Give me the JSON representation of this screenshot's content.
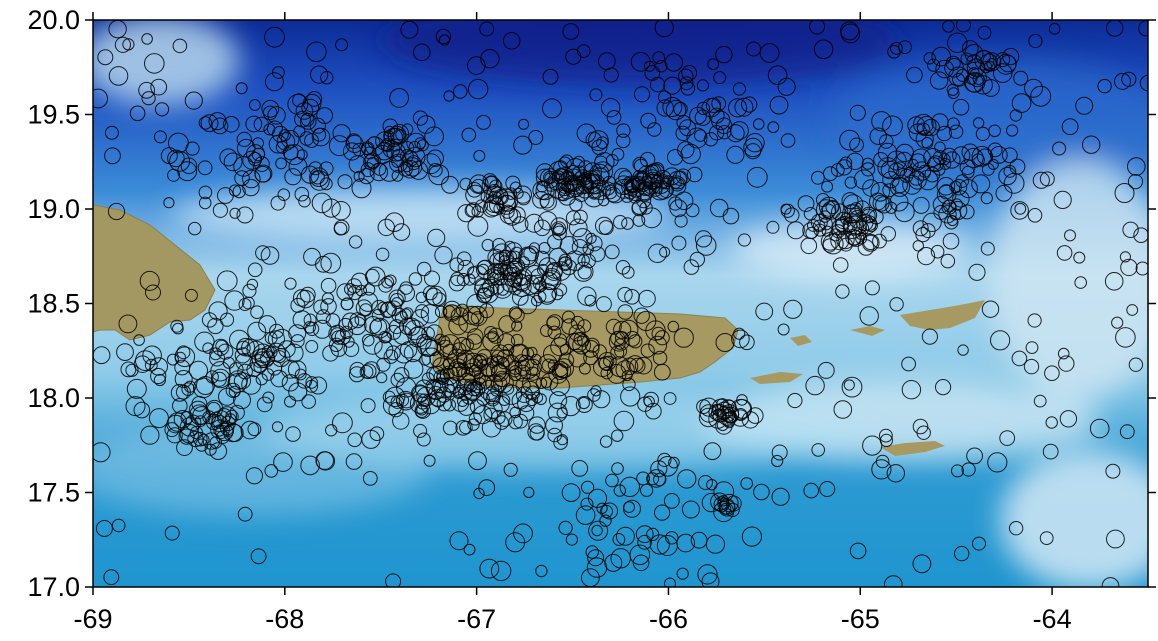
{
  "chart_data": {
    "type": "scatter",
    "title": "",
    "xlabel": "",
    "ylabel": "",
    "xlim": [
      -69.0,
      -63.5
    ],
    "ylim": [
      17.0,
      20.0
    ],
    "x_ticks": [
      "-69",
      "-68",
      "-67",
      "-66",
      "-65",
      "-64"
    ],
    "x_tick_values": [
      -69,
      -68,
      -67,
      -66,
      -65,
      -64
    ],
    "y_ticks": [
      "20.0",
      "19.5",
      "19.0",
      "18.5",
      "18.0",
      "17.5",
      "17.0"
    ],
    "y_tick_values": [
      20.0,
      19.5,
      19.0,
      18.5,
      18.0,
      17.5,
      17.0
    ],
    "marker": "open-circle",
    "marker_color": "#000000",
    "background": "shaded bathymetry (blue ocean) with olive land masses",
    "colors": {
      "deep_ocean": "#0d2f9c",
      "mid_ocean": "#2f7ed8",
      "shallow_ocean": "#9fd4ee",
      "land": "#a59a62"
    },
    "clusters": [
      {
        "lon": -68.2,
        "lat": 18.2,
        "n": 120,
        "spread": 0.35
      },
      {
        "lon": -68.4,
        "lat": 17.85,
        "n": 40,
        "spread": 0.12
      },
      {
        "lon": -67.05,
        "lat": 18.1,
        "n": 190,
        "spread": 0.28
      },
      {
        "lon": -66.8,
        "lat": 18.65,
        "n": 80,
        "spread": 0.18
      },
      {
        "lon": -66.5,
        "lat": 19.15,
        "n": 55,
        "spread": 0.09
      },
      {
        "lon": -66.1,
        "lat": 19.15,
        "n": 50,
        "spread": 0.09
      },
      {
        "lon": -66.9,
        "lat": 19.05,
        "n": 40,
        "spread": 0.12
      },
      {
        "lon": -65.1,
        "lat": 18.9,
        "n": 60,
        "spread": 0.14
      },
      {
        "lon": -64.6,
        "lat": 19.2,
        "n": 110,
        "spread": 0.3
      },
      {
        "lon": -68.0,
        "lat": 19.3,
        "n": 80,
        "spread": 0.3
      },
      {
        "lon": -67.4,
        "lat": 19.3,
        "n": 50,
        "spread": 0.15
      },
      {
        "lon": -65.7,
        "lat": 17.92,
        "n": 30,
        "spread": 0.07
      },
      {
        "lon": -65.7,
        "lat": 17.43,
        "n": 12,
        "spread": 0.03
      },
      {
        "lon": -66.4,
        "lat": 18.25,
        "n": 70,
        "spread": 0.25
      },
      {
        "lon": -65.9,
        "lat": 19.5,
        "n": 60,
        "spread": 0.3
      },
      {
        "lon": -64.4,
        "lat": 19.75,
        "n": 40,
        "spread": 0.15
      },
      {
        "lon": -67.5,
        "lat": 18.5,
        "n": 80,
        "spread": 0.3
      },
      {
        "lon": -66.3,
        "lat": 18.9,
        "n": 70,
        "spread": 0.35
      },
      {
        "lon": -66.2,
        "lat": 17.4,
        "n": 60,
        "spread": 0.5
      }
    ],
    "background_events": 450
  }
}
